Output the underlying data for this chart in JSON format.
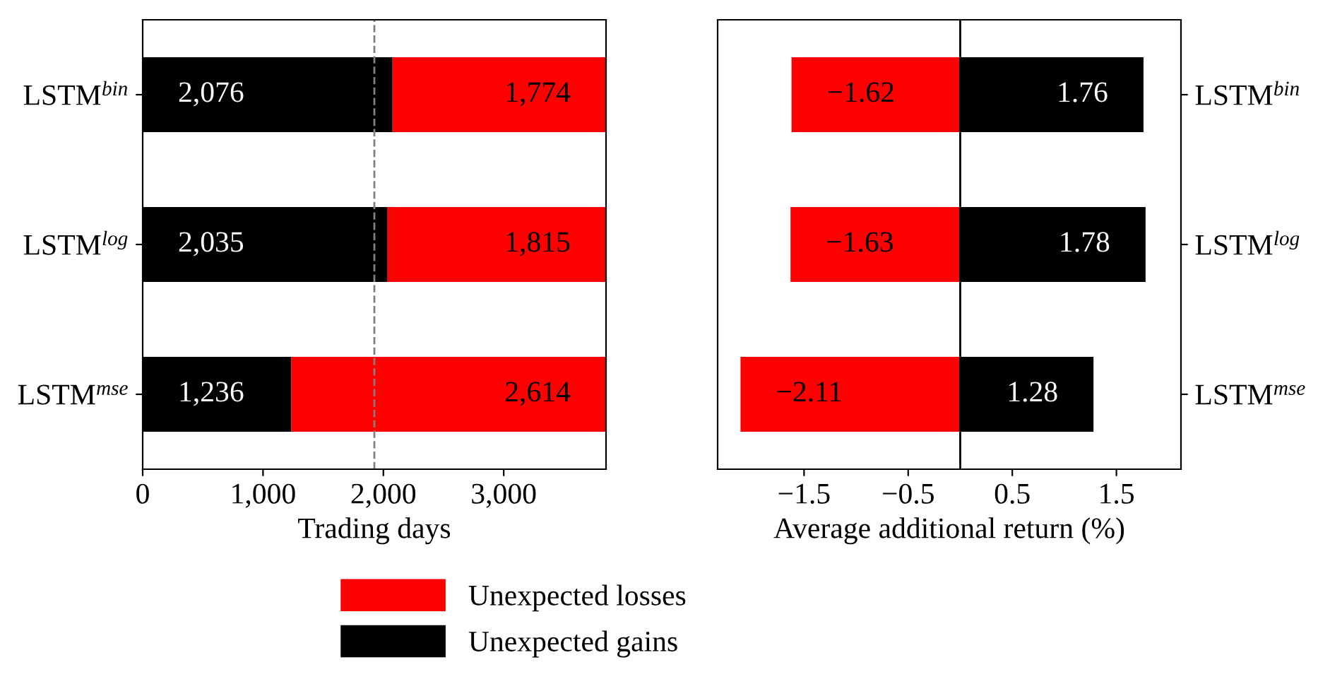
{
  "chart_data": [
    {
      "type": "bar",
      "orientation": "horizontal",
      "stacked": true,
      "xlabel": "Trading days",
      "categories": [
        "LSTM$^{bin}$",
        "LSTM$^{log}$",
        "LSTM$^{mse}$"
      ],
      "xlim": [
        0,
        3850
      ],
      "xticks": [
        0,
        {
          "value": 1000,
          "label": "1,000"
        },
        {
          "value": 2000,
          "label": "2,000"
        },
        {
          "value": 3000,
          "label": "3,000"
        }
      ],
      "ref_lines": [
        {
          "axis": "x",
          "value": 1925,
          "color": "#808080",
          "line_style": "dashed"
        }
      ],
      "legend": "bottom",
      "series": [
        {
          "name": "Unexpected gains",
          "color": "#000000",
          "values": [
            2076,
            2035,
            1236
          ],
          "value_labels": [
            "2,076",
            "2,035",
            "1,236"
          ]
        },
        {
          "name": "Unexpected losses",
          "color": "#ff0000",
          "values": [
            1774,
            1815,
            2614
          ],
          "value_labels": [
            "1,774",
            "1,815",
            "2,614"
          ]
        }
      ]
    },
    {
      "type": "bar",
      "orientation": "horizontal",
      "stacked": true,
      "xlabel": "Average additional return (%)",
      "categories": [
        "LSTM$^{bin}$",
        "LSTM$^{log}$",
        "LSTM$^{mse}$"
      ],
      "xlim": [
        -2.33,
        2.12
      ],
      "xticks": [
        {
          "value": -1.5,
          "label": "−1.5"
        },
        {
          "value": -0.5,
          "label": "−0.5"
        },
        0.5,
        1.5
      ],
      "ref_lines": [
        {
          "axis": "x",
          "value": 0,
          "color": "#000000",
          "line_style": "solid"
        }
      ],
      "legend": "bottom",
      "series": [
        {
          "name": "Unexpected losses",
          "color": "#ff0000",
          "values": [
            -1.62,
            -1.63,
            -2.11
          ],
          "value_labels": [
            "−1.62",
            "−1.63",
            "−2.11"
          ]
        },
        {
          "name": "Unexpected gains",
          "color": "#000000",
          "values": [
            1.76,
            1.78,
            1.28
          ],
          "value_labels": [
            "1.76",
            "1.78",
            "1.28"
          ]
        }
      ]
    }
  ]
}
